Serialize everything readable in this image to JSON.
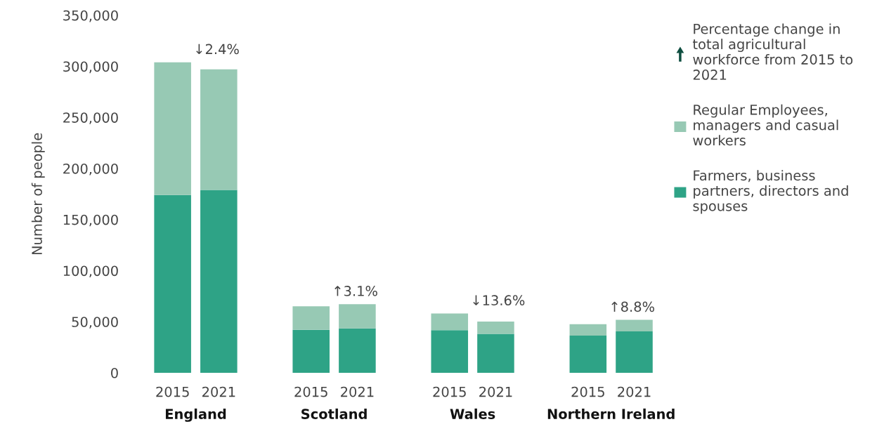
{
  "chart_data": {
    "type": "bar",
    "stacked": true,
    "categories": [
      "2015",
      "2021",
      "2015",
      "2021",
      "2015",
      "2021",
      "2015",
      "2021"
    ],
    "series": [
      {
        "name": "Farmers, business partners, directors and spouses",
        "color": "#2ea386",
        "values": [
          174000,
          179000,
          42000,
          43400,
          41700,
          38200,
          36400,
          40600
        ]
      },
      {
        "name": "Regular Employees, managers and casual workers",
        "color": "#97c9b4",
        "values": [
          130000,
          118000,
          23100,
          23800,
          16400,
          11900,
          11200,
          11200
        ]
      }
    ],
    "ylabel": "Number of people",
    "ylim": [
      0,
      350000
    ],
    "yticks": [
      0,
      {
        "value": 50000,
        "label": "50,000"
      },
      {
        "value": 100000,
        "label": "100,000"
      },
      {
        "value": 150000,
        "label": "150,000"
      },
      {
        "value": 200000,
        "label": "200,000"
      },
      {
        "value": 250000,
        "label": "250,000"
      },
      {
        "value": 300000,
        "label": "300,000"
      },
      {
        "value": 350000,
        "label": "350,000"
      }
    ],
    "annotations": [
      "England",
      "Scotland",
      "Wales",
      "Northern Ireland",
      "↓2.4%",
      "↑3.1%",
      "↓13.6%",
      "↑8.8%",
      "Percentage change in total agricultural workforce from 2015 to 2021"
    ],
    "legend": "right",
    "grid": false
  }
}
